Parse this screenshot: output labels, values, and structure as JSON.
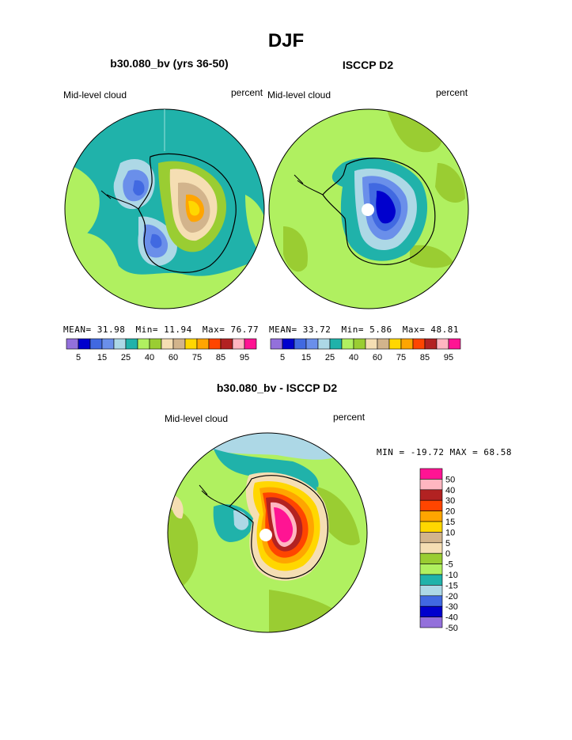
{
  "main_title": "DJF",
  "colors": {
    "model_obs_palette": [
      "#9370DB",
      "#0000CD",
      "#4169E1",
      "#6A8FEA",
      "#ADD8E6",
      "#20B2AA",
      "#B0F060",
      "#9ACD32",
      "#F5DEB3",
      "#D2B48C",
      "#FFD700",
      "#FFA500",
      "#FF4500",
      "#B22222",
      "#FFB6C1",
      "#FF1493"
    ],
    "diff_palette": [
      "#FF1493",
      "#FFB6C1",
      "#B22222",
      "#FF4500",
      "#FFA500",
      "#FFD700",
      "#D2B48C",
      "#F5DEB3",
      "#9ACD32",
      "#B0F060",
      "#20B2AA",
      "#ADD8E6",
      "#4169E1",
      "#0000CD",
      "#9370DB"
    ],
    "coastline": "#000000",
    "background_field": "#20B2AA"
  },
  "panels": {
    "model": {
      "title": "b30.080_bv (yrs 36-50)",
      "left_label": "Mid-level cloud",
      "right_label": "percent",
      "stats": {
        "mean_label": "MEAN=",
        "mean": "31.98",
        "min_label": "Min=",
        "min": "11.94",
        "max_label": "Max=",
        "max": "76.77"
      },
      "colorbar_ticks": [
        "5",
        "15",
        "25",
        "40",
        "60",
        "75",
        "85",
        "95"
      ]
    },
    "obs": {
      "title": "ISCCP D2",
      "left_label": "Mid-level cloud",
      "right_label": "percent",
      "stats": {
        "mean_label": "MEAN=",
        "mean": "33.72",
        "min_label": "Min=",
        "min": "5.86",
        "max_label": "Max=",
        "max": "48.81"
      },
      "colorbar_ticks": [
        "5",
        "15",
        "25",
        "40",
        "60",
        "75",
        "85",
        "95"
      ]
    },
    "diff": {
      "title": "b30.080_bv - ISCCP D2",
      "left_label": "Mid-level cloud",
      "right_label": "percent",
      "minmax": "MIN = -19.72 MAX =  68.58",
      "colorbar_labels": [
        "50",
        "40",
        "30",
        "20",
        "15",
        "10",
        "5",
        "0",
        "-5",
        "-10",
        "-15",
        "-20",
        "-30",
        "-40",
        "-50"
      ]
    }
  },
  "chart_data": [
    {
      "type": "heatmap",
      "projection": "south-polar-stereographic",
      "title": "b30.080_bv (yrs 36-50)",
      "variable": "Mid-level cloud",
      "units": "percent",
      "mean": 31.98,
      "min": 11.94,
      "max": 76.77,
      "contour_levels": [
        5,
        10,
        15,
        20,
        25,
        30,
        40,
        50,
        60,
        65,
        75,
        80,
        85,
        90,
        95
      ]
    },
    {
      "type": "heatmap",
      "projection": "south-polar-stereographic",
      "title": "ISCCP D2",
      "variable": "Mid-level cloud",
      "units": "percent",
      "mean": 33.72,
      "min": 5.86,
      "max": 48.81,
      "contour_levels": [
        5,
        10,
        15,
        20,
        25,
        30,
        40,
        50,
        60,
        65,
        75,
        80,
        85,
        90,
        95
      ]
    },
    {
      "type": "heatmap",
      "projection": "south-polar-stereographic",
      "title": "b30.080_bv - ISCCP D2",
      "variable": "Mid-level cloud",
      "units": "percent",
      "min": -19.72,
      "max": 68.58,
      "contour_levels": [
        50,
        40,
        30,
        20,
        15,
        10,
        5,
        0,
        -5,
        -10,
        -15,
        -20,
        -30,
        -40,
        -50
      ]
    }
  ]
}
